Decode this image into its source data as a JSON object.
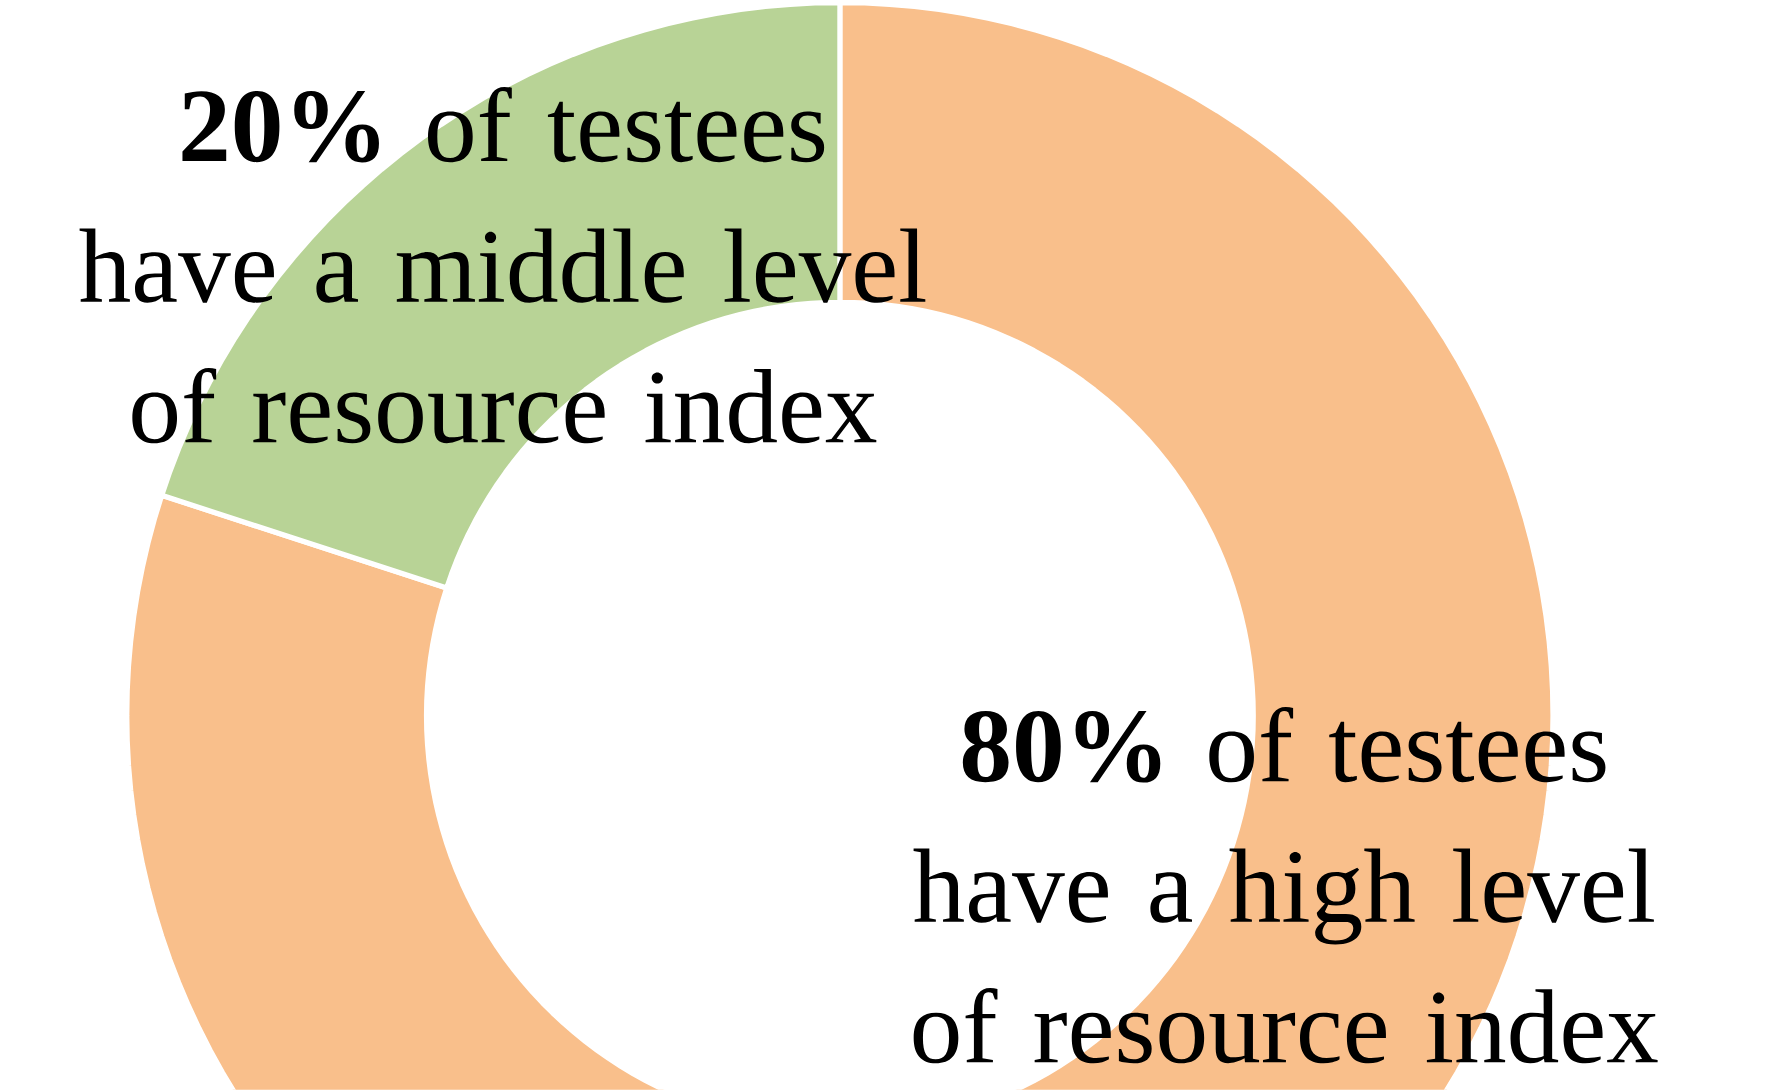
{
  "chart_data": {
    "type": "donut",
    "categories": [
      "**80%** of testees have a high level of resource index",
      "**20%** of testees have a middle level of resource index"
    ],
    "values": [
      80,
      20
    ],
    "colors": [
      "#f9bf8b",
      "#b8d396"
    ]
  }
}
